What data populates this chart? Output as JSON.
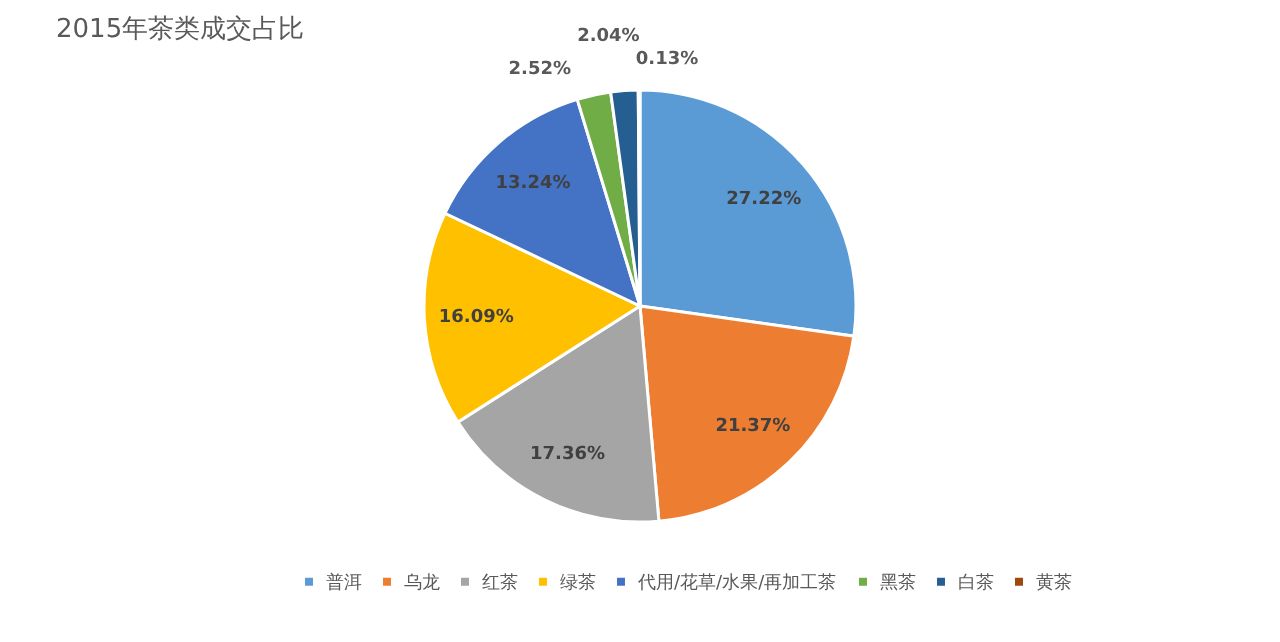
{
  "chart_data": {
    "type": "pie",
    "title": "2015年茶类成交占比",
    "categories": [
      "普洱",
      "乌龙",
      "红茶",
      "绿茶",
      "代用/花草/水果/再加工茶",
      "黑茶",
      "白茶",
      "黄茶"
    ],
    "values": [
      27.22,
      21.37,
      17.36,
      16.09,
      13.24,
      2.52,
      2.04,
      0.13
    ],
    "colors": [
      "#5b9bd5",
      "#ed7d31",
      "#a5a5a5",
      "#ffc000",
      "#4472c4",
      "#70ad47",
      "#255e91",
      "#9e480e"
    ],
    "value_labels": [
      "27.22%",
      "21.37%",
      "17.36%",
      "16.09%",
      "13.24%",
      "2.52%",
      "2.04%",
      "0.13%"
    ],
    "legend": "bottom"
  }
}
